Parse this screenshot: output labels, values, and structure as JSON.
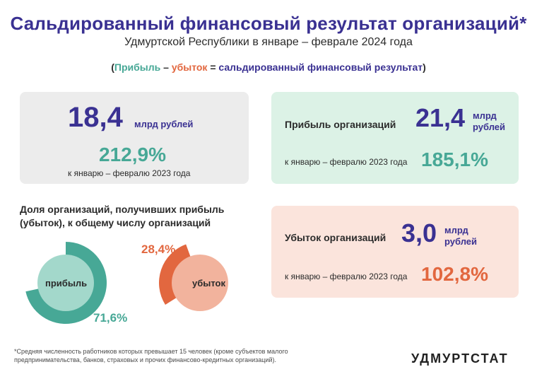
{
  "header": {
    "title": "Сальдированный финансовый результат организаций*",
    "subtitle": "Удмуртской Республики в январе – феврале 2024 года"
  },
  "formula": {
    "open": "(",
    "profit": "Прибыль",
    "dash": " – ",
    "loss": "убыток",
    "equals": " = ",
    "result": "сальдированный финансовый результат",
    "close": ")"
  },
  "total": {
    "value": "18,4",
    "unit": "млрд рублей",
    "percent": "212,9%",
    "comparison": "к январю – февралю 2023 года"
  },
  "profit": {
    "label": "Прибыль организаций",
    "value": "21,4",
    "unit_line1": "млрд",
    "unit_line2": "рублей",
    "comparison": "к январю – февралю 2023 года",
    "percent": "185,1%"
  },
  "loss": {
    "label": "Убыток организаций",
    "value": "3,0",
    "unit_line1": "млрд",
    "unit_line2": "рублей",
    "comparison": "к январю – февралю 2023 года",
    "percent": "102,8%"
  },
  "share": {
    "title": "Доля организаций, получивших прибыль (убыток), к общему числу организаций",
    "profit_label": "прибыль",
    "profit_pct_text": "71,6%",
    "profit_share": 71.6,
    "loss_label": "убыток",
    "loss_pct_text": "28,4%",
    "loss_share": 28.4
  },
  "colors": {
    "title": "#3a3192",
    "profit": "#47a896",
    "profit_light": "#a3d8cb",
    "loss": "#e2673f",
    "loss_light": "#f2b39d"
  },
  "footnote": "*Средняя численность работников которых превышает 15 человек (кроме субъектов малого предпринимательства, банков, страховых и прочих финансово-кредитных организаций).",
  "brand": "УДМУРТСТАТ"
}
